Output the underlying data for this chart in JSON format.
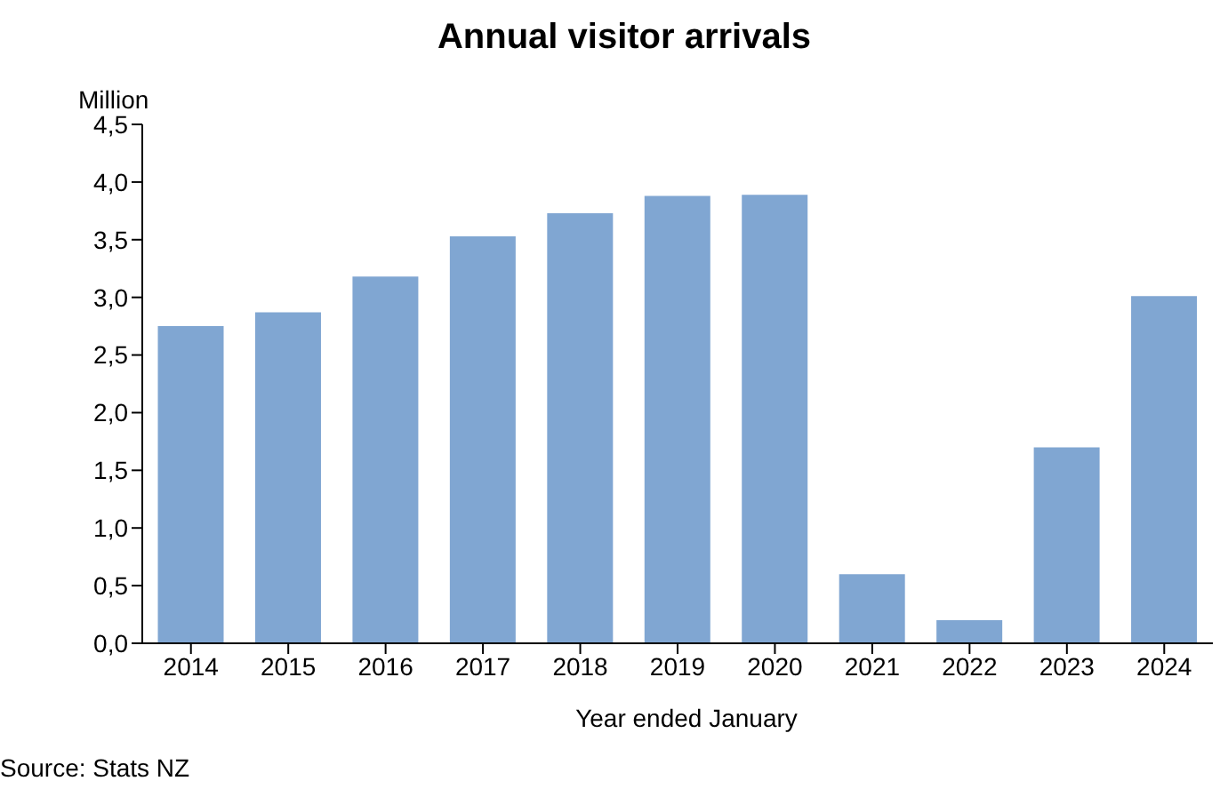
{
  "chart_data": {
    "type": "bar",
    "title": "Annual visitor arrivals",
    "ylabel": "Million",
    "xlabel": "Year ended January",
    "categories": [
      "2014",
      "2015",
      "2016",
      "2017",
      "2018",
      "2019",
      "2020",
      "2021",
      "2022",
      "2023",
      "2024"
    ],
    "values": [
      2.75,
      2.87,
      3.18,
      3.53,
      3.73,
      3.88,
      3.89,
      0.6,
      0.2,
      1.7,
      3.01
    ],
    "color": "#80a6d2",
    "ylim": [
      0,
      4.5
    ],
    "yticks": [
      {
        "value": 0,
        "label": "0,0"
      },
      {
        "value": 0.5,
        "label": "0,5"
      },
      {
        "value": 1,
        "label": "1,0"
      },
      {
        "value": 1.5,
        "label": "1,5"
      },
      {
        "value": 2,
        "label": "2,0"
      },
      {
        "value": 2.5,
        "label": "2,5"
      },
      {
        "value": 3,
        "label": "3,0"
      },
      {
        "value": 3.5,
        "label": "3,5"
      },
      {
        "value": 4,
        "label": "4,0"
      },
      {
        "value": 4.5,
        "label": "4,5"
      }
    ],
    "grid": false,
    "legend": false,
    "annotations": [
      "Source: Stats NZ"
    ]
  }
}
